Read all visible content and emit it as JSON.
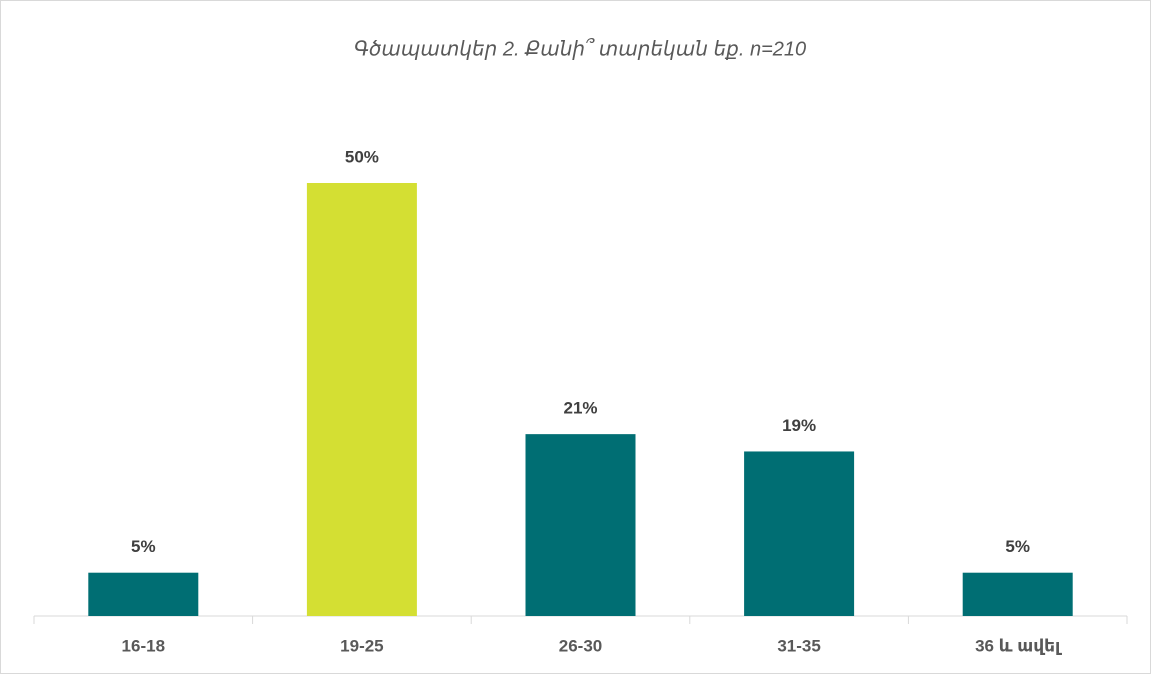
{
  "chart_data": {
    "type": "bar",
    "title": "Գծապատկեր 2. Քանի՞ տարեկան եք. n=210",
    "categories": [
      "16-18",
      "19-25",
      "26-30",
      "31-35",
      "36 և ավել"
    ],
    "values": [
      5,
      50,
      21,
      19,
      5
    ],
    "value_labels": [
      "5%",
      "50%",
      "21%",
      "19%",
      "5%"
    ],
    "colors": [
      "#006e73",
      "#d4df33",
      "#006e73",
      "#006e73",
      "#006e73"
    ]
  }
}
